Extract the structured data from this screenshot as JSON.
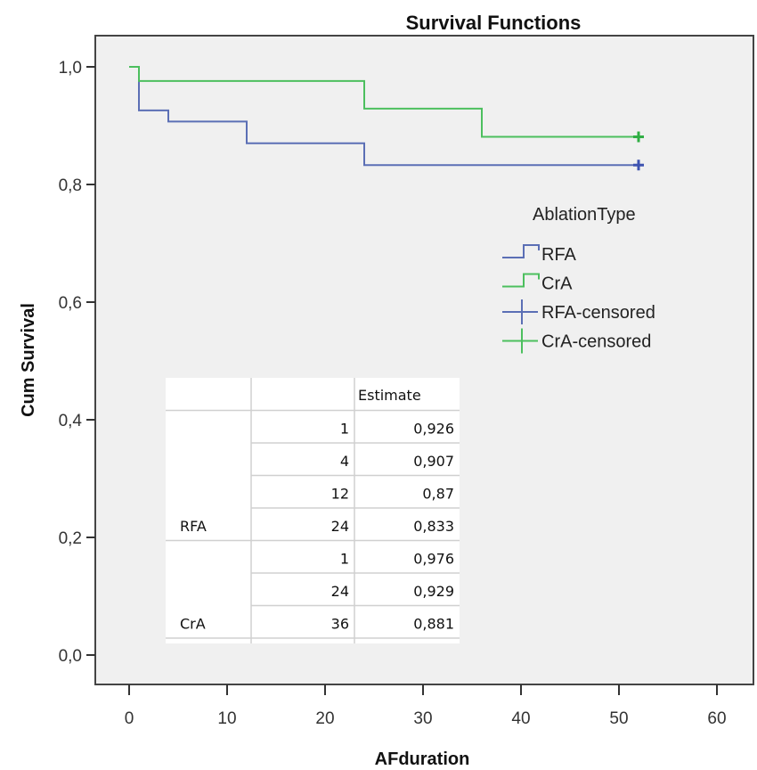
{
  "chart_data": {
    "type": "line",
    "subtype": "kaplan-meier-step",
    "title": "Survival Functions",
    "xlabel": "AFduration",
    "ylabel": "Cum Survival",
    "xlim": [
      0,
      60
    ],
    "ylim": [
      0,
      1
    ],
    "xticks": [
      0,
      10,
      20,
      30,
      40,
      50,
      60
    ],
    "xtick_labels": [
      "0",
      "10",
      "20",
      "30",
      "40",
      "50",
      "60"
    ],
    "yticks": [
      0,
      0.2,
      0.4,
      0.6,
      0.8,
      1.0
    ],
    "ytick_labels": [
      "0,0",
      "0,2",
      "0,4",
      "0,6",
      "0,8",
      "1,0"
    ],
    "grid": false,
    "legend": {
      "title": "AblationType",
      "position": "right",
      "entries": [
        "RFA",
        "CrA",
        "RFA-censored",
        "CrA-censored"
      ]
    },
    "series": [
      {
        "name": "RFA",
        "color": "#5b6fb5",
        "censor_color": "#3d52b0",
        "steps": [
          {
            "x": 0,
            "y": 1.0
          },
          {
            "x": 1,
            "y": 0.926
          },
          {
            "x": 4,
            "y": 0.907
          },
          {
            "x": 12,
            "y": 0.87
          },
          {
            "x": 24,
            "y": 0.833
          }
        ],
        "end_x": 52,
        "censored": [
          {
            "x": 52,
            "y": 0.833
          }
        ]
      },
      {
        "name": "CrA",
        "color": "#4cbf5e",
        "censor_color": "#2fae43",
        "steps": [
          {
            "x": 0,
            "y": 1.0
          },
          {
            "x": 1,
            "y": 0.976
          },
          {
            "x": 24,
            "y": 0.929
          },
          {
            "x": 36,
            "y": 0.881
          }
        ],
        "end_x": 52,
        "censored": [
          {
            "x": 52,
            "y": 0.881
          }
        ]
      }
    ],
    "table": {
      "header": [
        "",
        "",
        "Estimate"
      ],
      "groups": [
        {
          "label": "RFA",
          "rows": [
            {
              "time": "1",
              "estimate": "0,926"
            },
            {
              "time": "4",
              "estimate": "0,907"
            },
            {
              "time": "12",
              "estimate": "0,87"
            },
            {
              "time": "24",
              "estimate": "0,833"
            }
          ]
        },
        {
          "label": "CrA",
          "rows": [
            {
              "time": "1",
              "estimate": "0,976"
            },
            {
              "time": "24",
              "estimate": "0,929"
            },
            {
              "time": "36",
              "estimate": "0,881"
            }
          ]
        }
      ]
    }
  }
}
